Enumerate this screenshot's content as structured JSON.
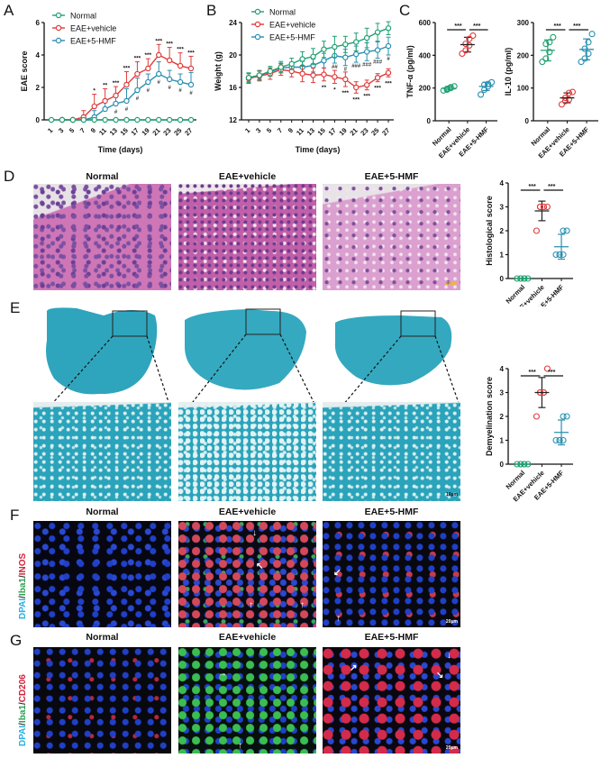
{
  "panels": {
    "A": "A",
    "B": "B",
    "C": "C",
    "D": "D",
    "E": "E",
    "F": "F",
    "G": "G"
  },
  "groups": [
    "Normal",
    "EAE+vehicle",
    "EAE+5-HMF"
  ],
  "colors": {
    "normal": "#1fa070",
    "vehicle": "#e03a3a",
    "hmf": "#2a8fb0"
  },
  "stains": {
    "F": {
      "dapi": "DPAI",
      "sep1": "/",
      "iba1": "Iba1",
      "sep2": "/",
      "marker": "INOS"
    },
    "G": {
      "dapi": "DPAI",
      "sep1": "/",
      "iba1": "Iba1",
      "sep2": "/",
      "marker": "CD206"
    }
  },
  "scalebars": {
    "D": "20μm",
    "E": "10μm",
    "F": "20μm",
    "G": "20μm"
  },
  "chart_data": [
    {
      "id": "A",
      "type": "line",
      "title": "",
      "xlabel": "Time (days)",
      "ylabel": "EAE score",
      "ylim": [
        0,
        6
      ],
      "yticks": [
        0,
        2,
        4,
        6
      ],
      "x": [
        1,
        3,
        5,
        7,
        9,
        11,
        13,
        15,
        17,
        19,
        21,
        23,
        25,
        27
      ],
      "legend": [
        "Normal",
        "EAE+vehicle",
        "EAE+5-HMF"
      ],
      "series": [
        {
          "name": "Normal",
          "values": [
            0,
            0,
            0,
            0,
            0,
            0,
            0,
            0,
            0,
            0,
            0,
            0,
            0,
            0
          ],
          "err": [
            0,
            0,
            0,
            0,
            0,
            0,
            0,
            0,
            0,
            0,
            0,
            0,
            0,
            0
          ]
        },
        {
          "name": "EAE+vehicle",
          "values": [
            null,
            0,
            0,
            0.17,
            0.83,
            1.17,
            1.5,
            2.17,
            2.83,
            3.17,
            4.0,
            3.67,
            3.33,
            3.17
          ],
          "err": [
            0,
            0,
            0,
            0.4,
            0.75,
            0.75,
            0.55,
            0.8,
            0.75,
            0.6,
            0.65,
            0.8,
            0.8,
            0.75
          ]
        },
        {
          "name": "EAE+5-HMF",
          "values": [
            null,
            0,
            0,
            0,
            0.17,
            0.67,
            1.0,
            1.17,
            1.83,
            2.33,
            2.83,
            2.5,
            2.33,
            2.17
          ],
          "err": [
            0,
            0,
            0,
            0,
            0.4,
            0.5,
            0.55,
            0.75,
            0.75,
            0.5,
            0.75,
            0.55,
            0.5,
            0.75
          ]
        }
      ],
      "annotations_vehicle": [
        "",
        "",
        "",
        "",
        "*",
        "**",
        "***",
        "***",
        "***",
        "***",
        "***",
        "***",
        "***",
        "***"
      ],
      "annotations_hmf": [
        "",
        "",
        "",
        "",
        "",
        "",
        "#",
        "#",
        "#",
        "#",
        "#",
        "#",
        "#",
        "#"
      ]
    },
    {
      "id": "B",
      "type": "line",
      "title": "",
      "xlabel": "Time (days)",
      "ylabel": "Weight (g)",
      "ylim": [
        12,
        24
      ],
      "yticks": [
        12,
        16,
        20,
        24
      ],
      "x": [
        1,
        3,
        5,
        7,
        9,
        11,
        13,
        15,
        17,
        19,
        21,
        23,
        25,
        27
      ],
      "legend": [
        "Normal",
        "EAE+vehicle",
        "EAE+5-HMF"
      ],
      "series": [
        {
          "name": "Normal",
          "values": [
            17.2,
            17.5,
            18.0,
            18.5,
            18.9,
            19.5,
            19.8,
            20.7,
            21.0,
            21.3,
            21.6,
            22.1,
            22.8,
            23.3
          ],
          "err": [
            0.6,
            0.6,
            0.6,
            0.7,
            0.7,
            0.9,
            1.0,
            1.0,
            1.3,
            1.0,
            1.1,
            1.2,
            1.1,
            0.8
          ]
        },
        {
          "name": "EAE+vehicle",
          "values": [
            17.1,
            17.4,
            17.7,
            18.2,
            18.0,
            17.7,
            17.5,
            17.6,
            17.3,
            17.0,
            16.0,
            16.3,
            17.2,
            17.8
          ],
          "err": [
            0.6,
            0.6,
            0.7,
            0.7,
            0.7,
            1.0,
            0.9,
            0.8,
            0.8,
            0.9,
            0.7,
            0.6,
            0.5,
            0.5
          ]
        },
        {
          "name": "EAE+5-HMF",
          "values": [
            17.2,
            17.5,
            17.9,
            18.4,
            18.5,
            18.5,
            18.7,
            19.3,
            19.9,
            19.7,
            20.1,
            20.4,
            20.6,
            21.1
          ],
          "err": [
            0.5,
            0.5,
            0.5,
            0.6,
            0.6,
            0.7,
            0.8,
            0.9,
            0.9,
            1.0,
            1.0,
            1.1,
            1.0,
            1.1
          ]
        }
      ],
      "annotations_vehicle": [
        "",
        "",
        "",
        "",
        "",
        "",
        "",
        "**",
        "*",
        "***",
        "***",
        "***",
        "***",
        "***"
      ],
      "annotations_hmf": [
        "",
        "",
        "",
        "",
        "",
        "",
        "",
        "",
        "##",
        "#",
        "###",
        "###",
        "###",
        "#"
      ]
    },
    {
      "id": "C1",
      "type": "scatter",
      "title": "",
      "xlabel": "",
      "ylabel": "TNF-α (pg/ml)",
      "ylim": [
        0,
        600
      ],
      "yticks": [
        0,
        200,
        400,
        600
      ],
      "categories": [
        "Normal",
        "EAE+vehicle",
        "EAE+5-HMF"
      ],
      "series": [
        {
          "name": "Normal",
          "points": [
            185,
            195,
            200,
            190,
            205,
            210
          ],
          "mean": 198,
          "sd": 10
        },
        {
          "name": "EAE+vehicle",
          "points": [
            410,
            430,
            460,
            470,
            500,
            520
          ],
          "mean": 465,
          "sd": 45
        },
        {
          "name": "EAE+5-HMF",
          "points": [
            160,
            190,
            210,
            220,
            225,
            235
          ],
          "mean": 210,
          "sd": 25
        }
      ],
      "significance": [
        "***",
        "***"
      ]
    },
    {
      "id": "C2",
      "type": "scatter",
      "title": "",
      "xlabel": "",
      "ylabel": "IL-10 (pg/ml)",
      "ylim": [
        0,
        300
      ],
      "yticks": [
        0,
        100,
        200,
        300
      ],
      "categories": [
        "Normal",
        "EAE+vehicle",
        "EAE+5-HMF"
      ],
      "series": [
        {
          "name": "Normal",
          "points": [
            180,
            190,
            210,
            235,
            240,
            255
          ],
          "mean": 215,
          "sd": 32
        },
        {
          "name": "EAE+vehicle",
          "points": [
            50,
            60,
            65,
            70,
            85,
            88
          ],
          "mean": 70,
          "sd": 15
        },
        {
          "name": "EAE+5-HMF",
          "points": [
            180,
            190,
            205,
            220,
            240,
            265
          ],
          "mean": 218,
          "sd": 32
        }
      ],
      "significance": [
        "***",
        "***"
      ]
    },
    {
      "id": "D",
      "type": "scatter",
      "title": "",
      "xlabel": "",
      "ylabel": "Histological score",
      "ylim": [
        0,
        4
      ],
      "yticks": [
        0,
        1,
        2,
        3,
        4
      ],
      "categories": [
        "Normal",
        "EAE+vehicle",
        "EAE+5-HMF"
      ],
      "series": [
        {
          "name": "Normal",
          "points": [
            0,
            0,
            0,
            0,
            0,
            0
          ],
          "mean": 0,
          "sd": 0
        },
        {
          "name": "EAE+vehicle",
          "points": [
            2,
            3,
            3,
            3,
            3,
            3
          ],
          "mean": 2.83,
          "sd": 0.41
        },
        {
          "name": "EAE+5-HMF",
          "points": [
            1,
            1,
            1,
            1,
            2,
            2
          ],
          "mean": 1.33,
          "sd": 0.52
        }
      ],
      "significance": [
        "***",
        "***"
      ]
    },
    {
      "id": "E",
      "type": "scatter",
      "title": "",
      "xlabel": "",
      "ylabel": "Demyelination score",
      "ylim": [
        0,
        4
      ],
      "yticks": [
        0,
        1,
        2,
        3,
        4
      ],
      "categories": [
        "Normal",
        "EAE+vehicle",
        "EAE+5-HMF"
      ],
      "series": [
        {
          "name": "Normal",
          "points": [
            0,
            0,
            0,
            0,
            0,
            0
          ],
          "mean": 0,
          "sd": 0
        },
        {
          "name": "EAE+vehicle",
          "points": [
            2,
            3,
            3,
            3,
            3,
            4
          ],
          "mean": 3.0,
          "sd": 0.63
        },
        {
          "name": "EAE+5-HMF",
          "points": [
            1,
            1,
            1,
            1,
            2,
            2
          ],
          "mean": 1.33,
          "sd": 0.52
        }
      ],
      "significance": [
        "***",
        "***"
      ]
    }
  ]
}
